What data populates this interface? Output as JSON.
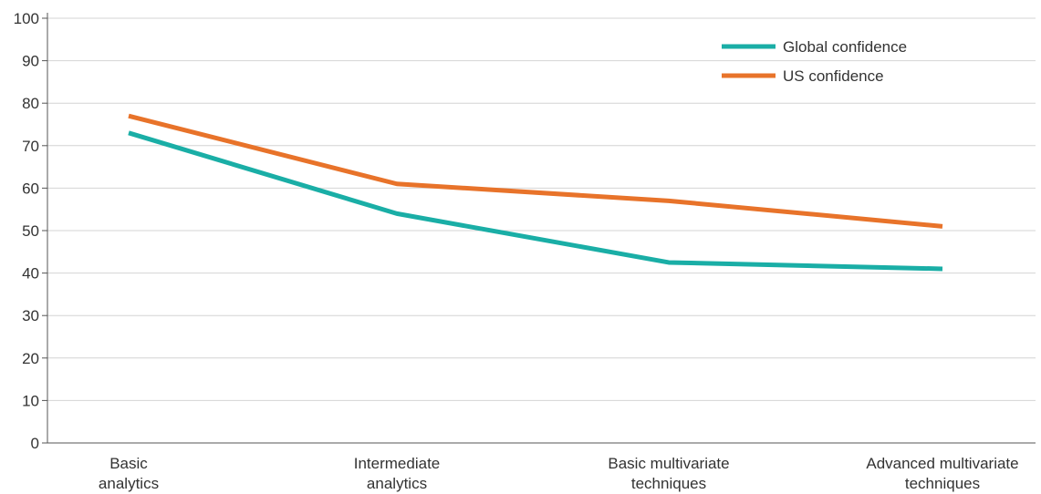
{
  "chart_data": {
    "type": "line",
    "title": "",
    "xlabel": "",
    "ylabel": "",
    "ylim": [
      0,
      100
    ],
    "yticks": [
      "0",
      "10",
      "20",
      "30",
      "40",
      "50",
      "60",
      "70",
      "80",
      "90",
      "100"
    ],
    "grid": true,
    "legend_position": "top-right",
    "categories": [
      [
        "Basic",
        "analytics"
      ],
      [
        "Intermediate",
        "analytics"
      ],
      [
        "Basic multivariate",
        "techniques"
      ],
      [
        "Advanced multivariate",
        "techniques"
      ]
    ],
    "series": [
      {
        "name": "Global confidence",
        "color": "#1aaea6",
        "values": [
          73,
          54,
          42.5,
          41
        ]
      },
      {
        "name": "US confidence",
        "color": "#e8732a",
        "values": [
          77,
          61,
          57,
          51
        ]
      }
    ]
  }
}
